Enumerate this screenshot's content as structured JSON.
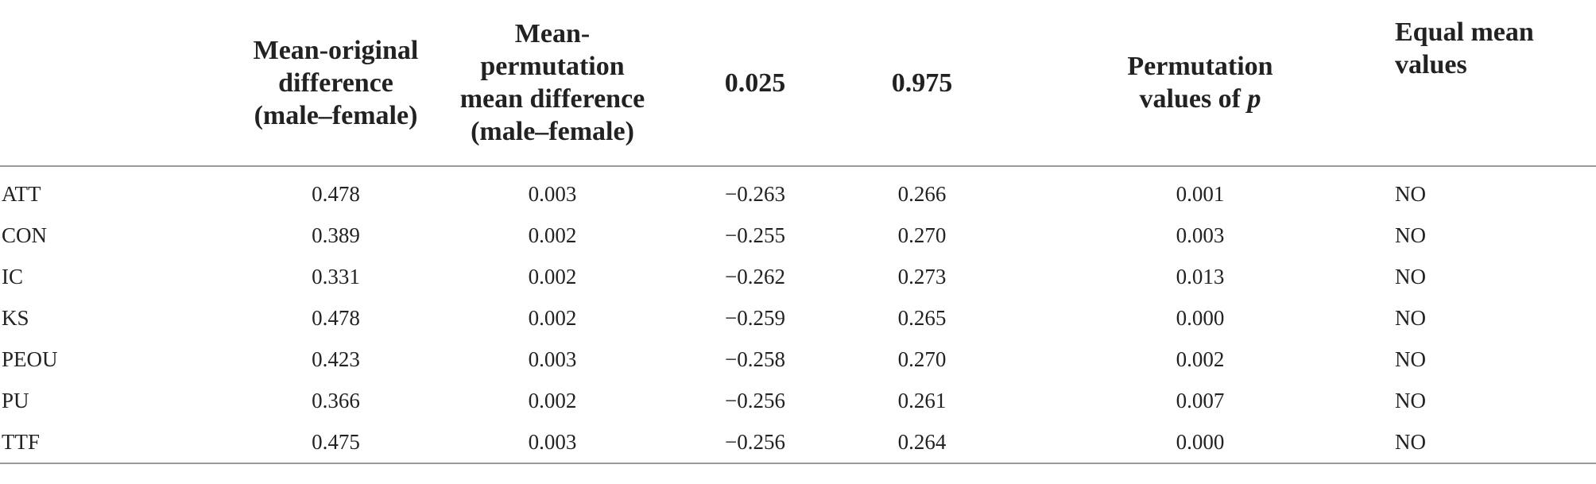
{
  "table": {
    "headers": {
      "stub": "",
      "mean_original": [
        "Mean-original",
        "difference",
        "(male–female)"
      ],
      "mean_permutation": [
        "Mean-",
        "permutation",
        "mean difference",
        "(male–female)"
      ],
      "q025": "0.025",
      "q975": "0.975",
      "perm_p": {
        "line1": "Permutation",
        "line2_prefix": "values of ",
        "line2_italic": "p"
      },
      "equal_mean": [
        "Equal mean",
        "values"
      ]
    },
    "rows": [
      {
        "construct": "ATT",
        "mean_original": "0.478",
        "mean_permutation": "0.003",
        "q025": "−0.263",
        "q975": "0.266",
        "perm_p": "0.001",
        "equal_mean": "NO"
      },
      {
        "construct": "CON",
        "mean_original": "0.389",
        "mean_permutation": "0.002",
        "q025": "−0.255",
        "q975": "0.270",
        "perm_p": "0.003",
        "equal_mean": "NO"
      },
      {
        "construct": "IC",
        "mean_original": "0.331",
        "mean_permutation": "0.002",
        "q025": "−0.262",
        "q975": "0.273",
        "perm_p": "0.013",
        "equal_mean": "NO"
      },
      {
        "construct": "KS",
        "mean_original": "0.478",
        "mean_permutation": "0.002",
        "q025": "−0.259",
        "q975": "0.265",
        "perm_p": "0.000",
        "equal_mean": "NO"
      },
      {
        "construct": "PEOU",
        "mean_original": "0.423",
        "mean_permutation": "0.003",
        "q025": "−0.258",
        "q975": "0.270",
        "perm_p": "0.002",
        "equal_mean": "NO"
      },
      {
        "construct": "PU",
        "mean_original": "0.366",
        "mean_permutation": "0.002",
        "q025": "−0.256",
        "q975": "0.261",
        "perm_p": "0.007",
        "equal_mean": "NO"
      },
      {
        "construct": "TTF",
        "mean_original": "0.475",
        "mean_permutation": "0.003",
        "q025": "−0.256",
        "q975": "0.264",
        "perm_p": "0.000",
        "equal_mean": "NO"
      }
    ]
  }
}
